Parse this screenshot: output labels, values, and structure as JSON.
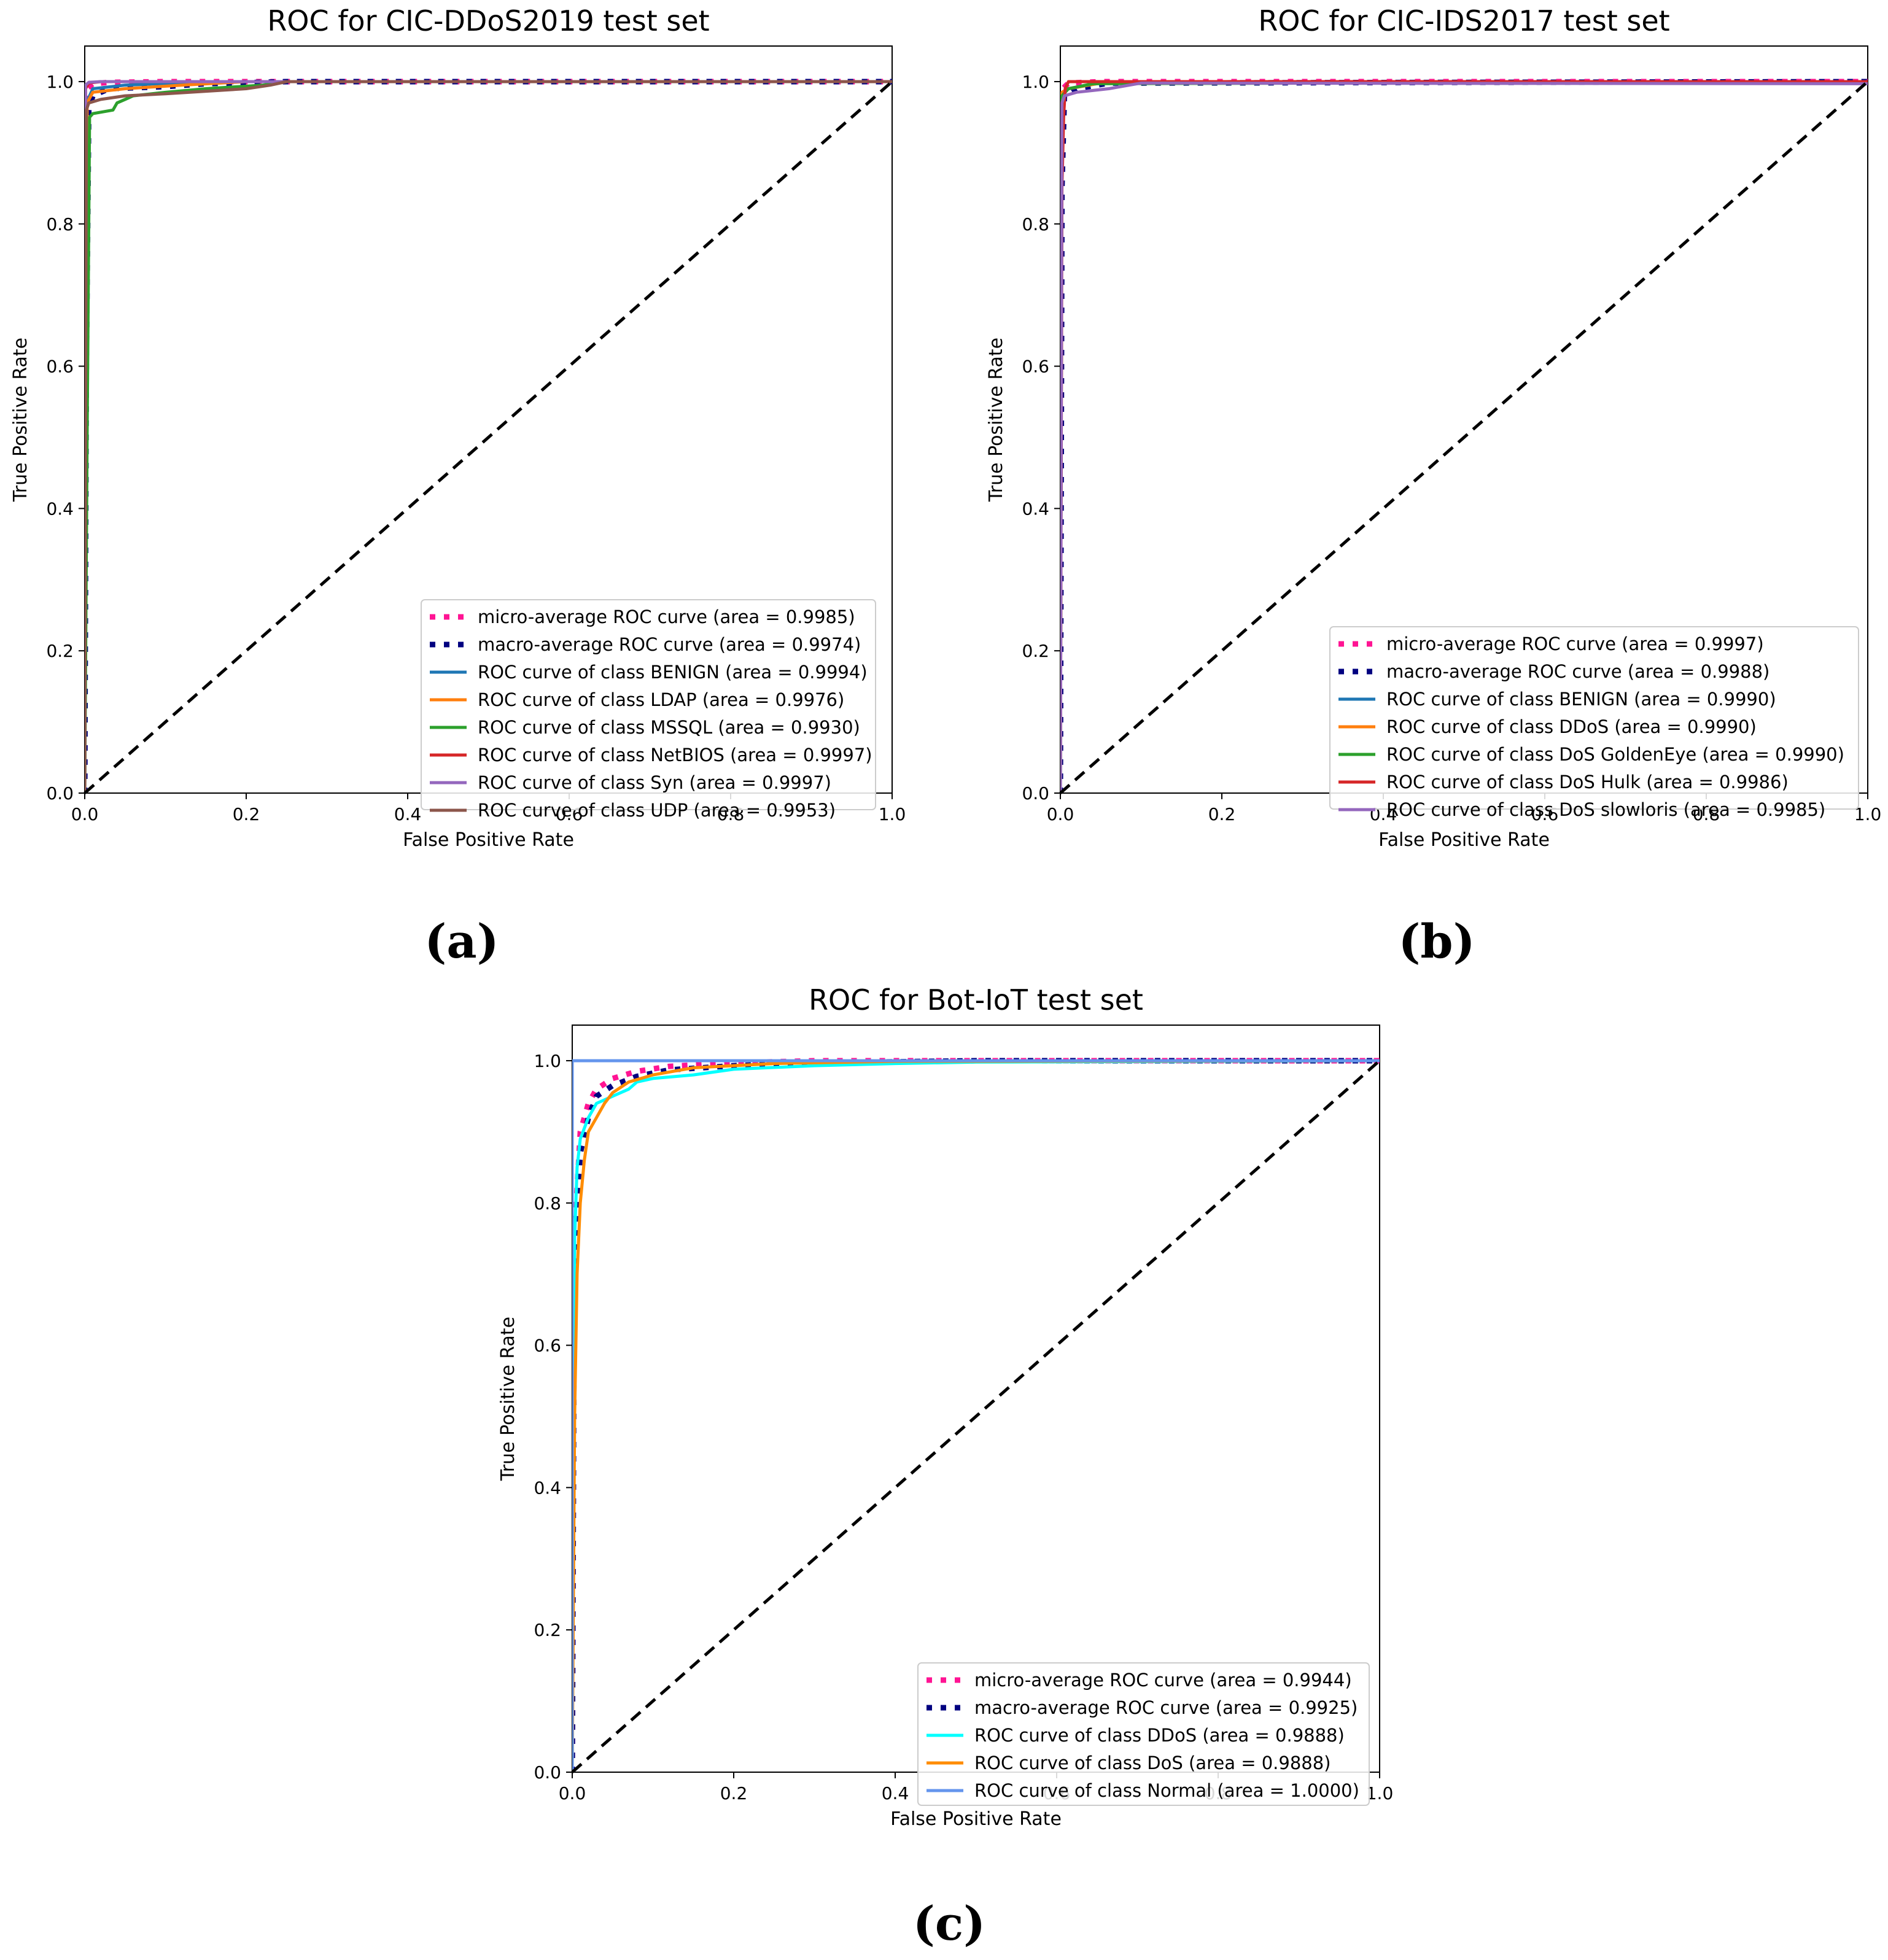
{
  "chart_data": [
    {
      "type": "line",
      "panel_label": "(a)",
      "title": "ROC for CIC-DDoS2019 test set",
      "xlabel": "False Positive Rate",
      "ylabel": "True Positive Rate",
      "xlim": [
        0.0,
        1.0
      ],
      "ylim": [
        0.0,
        1.05
      ],
      "xticks": [
        "0.0",
        "0.2",
        "0.4",
        "0.6",
        "0.8",
        "1.0"
      ],
      "yticks": [
        "0.0",
        "0.2",
        "0.4",
        "0.6",
        "0.8",
        "1.0"
      ],
      "xtick_values": [
        0.0,
        0.2,
        0.4,
        0.6,
        0.8,
        1.0
      ],
      "ytick_values": [
        0.0,
        0.2,
        0.4,
        0.6,
        0.8,
        1.0
      ],
      "legend_position": "lower-right",
      "series": [
        {
          "name": "micro-average ROC curve (area = 0.9985)",
          "color": "#ff1493",
          "style": "dotted",
          "x": [
            0,
            0.001,
            0.003,
            0.01,
            0.03,
            0.1,
            1
          ],
          "y": [
            0,
            0.5,
            0.99,
            0.997,
            0.999,
            1.0,
            1.0
          ]
        },
        {
          "name": "macro-average ROC curve (area = 0.9974)",
          "color": "#000080",
          "style": "dotted",
          "x": [
            0,
            0.002,
            0.005,
            0.01,
            0.03,
            0.1,
            0.15,
            0.25,
            1
          ],
          "y": [
            0,
            0.6,
            0.96,
            0.98,
            0.99,
            0.993,
            0.997,
            1.0,
            1.0
          ]
        },
        {
          "name": "ROC curve of class BENIGN (area = 0.9994)",
          "color": "#1f77b4",
          "style": "solid",
          "x": [
            0,
            0.002,
            0.01,
            0.05,
            0.15,
            1
          ],
          "y": [
            0,
            0.97,
            0.99,
            0.995,
            1.0,
            1.0
          ]
        },
        {
          "name": "ROC curve of class LDAP (area = 0.9976)",
          "color": "#ff7f0e",
          "style": "solid",
          "x": [
            0,
            0.003,
            0.01,
            0.05,
            0.12,
            0.2,
            1
          ],
          "y": [
            0,
            0.97,
            0.985,
            0.99,
            0.995,
            1.0,
            1.0
          ]
        },
        {
          "name": "ROC curve of class MSSQL (area = 0.9930)",
          "color": "#2ca02c",
          "style": "solid",
          "x": [
            0,
            0.003,
            0.006,
            0.01,
            0.035,
            0.04,
            0.05,
            0.06,
            0.1,
            0.15,
            0.22,
            0.25,
            1
          ],
          "y": [
            0,
            0.5,
            0.95,
            0.955,
            0.96,
            0.97,
            0.975,
            0.98,
            0.985,
            0.99,
            0.995,
            1.0,
            1.0
          ]
        },
        {
          "name": "ROC curve of class NetBIOS (area = 0.9997)",
          "color": "#d62728",
          "style": "solid",
          "x": [
            0,
            0.001,
            0.005,
            0.02,
            1
          ],
          "y": [
            0,
            0.99,
            0.998,
            1.0,
            1.0
          ]
        },
        {
          "name": "ROC curve of class Syn (area = 0.9997)",
          "color": "#9467bd",
          "style": "solid",
          "x": [
            0,
            0.001,
            0.005,
            0.02,
            1
          ],
          "y": [
            0,
            0.995,
            0.999,
            1.0,
            1.0
          ]
        },
        {
          "name": "ROC curve of class UDP (area = 0.9953)",
          "color": "#8c564b",
          "style": "solid",
          "x": [
            0,
            0.002,
            0.005,
            0.02,
            0.05,
            0.1,
            0.2,
            0.23,
            0.25,
            1
          ],
          "y": [
            0,
            0.96,
            0.97,
            0.975,
            0.98,
            0.983,
            0.99,
            0.995,
            1.0,
            1.0
          ]
        }
      ]
    },
    {
      "type": "line",
      "panel_label": "(b)",
      "title": "ROC for CIC-IDS2017 test set",
      "xlabel": "False Positive Rate",
      "ylabel": "True Positive Rate",
      "xlim": [
        0.0,
        1.0
      ],
      "ylim": [
        0.0,
        1.05
      ],
      "xticks": [
        "0.0",
        "0.2",
        "0.4",
        "0.6",
        "0.8",
        "1.0"
      ],
      "yticks": [
        "0.0",
        "0.2",
        "0.4",
        "0.6",
        "0.8",
        "1.0"
      ],
      "xtick_values": [
        0.0,
        0.2,
        0.4,
        0.6,
        0.8,
        1.0
      ],
      "ytick_values": [
        0.0,
        0.2,
        0.4,
        0.6,
        0.8,
        1.0
      ],
      "legend_position": "lower-right",
      "series": [
        {
          "name": "micro-average ROC curve (area = 0.9997)",
          "color": "#ff1493",
          "style": "dotted",
          "x": [
            0,
            0.001,
            0.003,
            0.01,
            0.05,
            1
          ],
          "y": [
            0,
            0.9,
            0.99,
            0.998,
            1.0,
            1.0
          ]
        },
        {
          "name": "macro-average ROC curve (area = 0.9988)",
          "color": "#000080",
          "style": "dotted",
          "x": [
            0,
            0.002,
            0.005,
            0.02,
            0.06,
            1
          ],
          "y": [
            0,
            0.85,
            0.98,
            0.99,
            0.998,
            1.0
          ]
        },
        {
          "name": "ROC curve of class BENIGN (area = 0.9990)",
          "color": "#1f77b4",
          "style": "solid",
          "x": [
            0,
            0.002,
            0.01,
            0.05,
            1
          ],
          "y": [
            0,
            0.98,
            0.99,
            0.998,
            1.0
          ]
        },
        {
          "name": "ROC curve of class DDoS (area = 0.9990)",
          "color": "#ff7f0e",
          "style": "solid",
          "x": [
            0,
            0.002,
            0.01,
            0.05,
            1
          ],
          "y": [
            0,
            0.985,
            0.99,
            0.998,
            1.0
          ]
        },
        {
          "name": "ROC curve of class DoS GoldenEye (area = 0.9990)",
          "color": "#2ca02c",
          "style": "solid",
          "x": [
            0,
            0.002,
            0.01,
            0.04,
            1
          ],
          "y": [
            0,
            0.98,
            0.99,
            0.997,
            1.0
          ]
        },
        {
          "name": "ROC curve of class DoS Hulk (area = 0.9986)",
          "color": "#d62728",
          "style": "solid",
          "x": [
            0,
            0.002,
            0.004,
            0.006,
            0.01,
            0.02,
            0.04,
            1
          ],
          "y": [
            0,
            0.85,
            0.95,
            0.99,
            1.0,
            1.0,
            1.0,
            1.0
          ]
        },
        {
          "name": "ROC curve of class DoS slowloris (area = 0.9985)",
          "color": "#9467bd",
          "style": "solid",
          "x": [
            0,
            0.002,
            0.005,
            0.02,
            0.06,
            0.1,
            1
          ],
          "y": [
            0,
            0.97,
            0.98,
            0.985,
            0.99,
            0.998,
            0.997
          ]
        }
      ]
    },
    {
      "type": "line",
      "panel_label": "(c)",
      "title": "ROC for Bot-IoT test set",
      "xlabel": "False Positive Rate",
      "ylabel": "True Positive Rate",
      "xlim": [
        0.0,
        1.0
      ],
      "ylim": [
        0.0,
        1.05
      ],
      "xticks": [
        "0.0",
        "0.2",
        "0.4",
        "0.6",
        "0.8",
        "1.0"
      ],
      "yticks": [
        "0.0",
        "0.2",
        "0.4",
        "0.6",
        "0.8",
        "1.0"
      ],
      "xtick_values": [
        0.0,
        0.2,
        0.4,
        0.6,
        0.8,
        1.0
      ],
      "ytick_values": [
        0.0,
        0.2,
        0.4,
        0.6,
        0.8,
        1.0
      ],
      "legend_position": "lower-right",
      "series": [
        {
          "name": "micro-average ROC curve (area = 0.9944)",
          "color": "#ff1493",
          "style": "dotted",
          "x": [
            0,
            0.002,
            0.005,
            0.01,
            0.02,
            0.03,
            0.05,
            0.08,
            0.12,
            0.2,
            0.3,
            1
          ],
          "y": [
            0,
            0.6,
            0.8,
            0.9,
            0.94,
            0.96,
            0.975,
            0.985,
            0.992,
            0.997,
            1.0,
            1.0
          ]
        },
        {
          "name": "macro-average ROC curve (area = 0.9925)",
          "color": "#000080",
          "style": "dotted",
          "x": [
            0,
            0.002,
            0.005,
            0.01,
            0.02,
            0.03,
            0.05,
            0.08,
            0.12,
            0.2,
            0.3,
            0.5,
            1
          ],
          "y": [
            0,
            0.55,
            0.78,
            0.87,
            0.92,
            0.95,
            0.965,
            0.978,
            0.987,
            0.993,
            0.997,
            1.0,
            1.0
          ]
        },
        {
          "name": "ROC curve of class DDoS (area = 0.9888)",
          "color": "#00ffff",
          "style": "solid",
          "x": [
            0,
            0.003,
            0.006,
            0.01,
            0.02,
            0.03,
            0.05,
            0.07,
            0.08,
            0.1,
            0.15,
            0.2,
            0.3,
            0.4,
            0.5,
            1
          ],
          "y": [
            0,
            0.75,
            0.85,
            0.89,
            0.92,
            0.94,
            0.95,
            0.96,
            0.97,
            0.975,
            0.98,
            0.988,
            0.993,
            0.996,
            0.998,
            1.0
          ]
        },
        {
          "name": "ROC curve of class DoS (area = 0.9888)",
          "color": "#ff8c00",
          "style": "solid",
          "x": [
            0,
            0.003,
            0.006,
            0.01,
            0.015,
            0.02,
            0.03,
            0.04,
            0.05,
            0.07,
            0.1,
            0.15,
            0.25,
            0.4,
            1
          ],
          "y": [
            0,
            0.5,
            0.7,
            0.8,
            0.86,
            0.9,
            0.92,
            0.94,
            0.955,
            0.97,
            0.98,
            0.99,
            0.996,
            0.999,
            1.0
          ]
        },
        {
          "name": "ROC curve of class Normal (area = 1.0000)",
          "color": "#6495ed",
          "style": "solid",
          "x": [
            0,
            0.0,
            1
          ],
          "y": [
            0,
            1.0,
            1.0
          ]
        }
      ]
    }
  ]
}
